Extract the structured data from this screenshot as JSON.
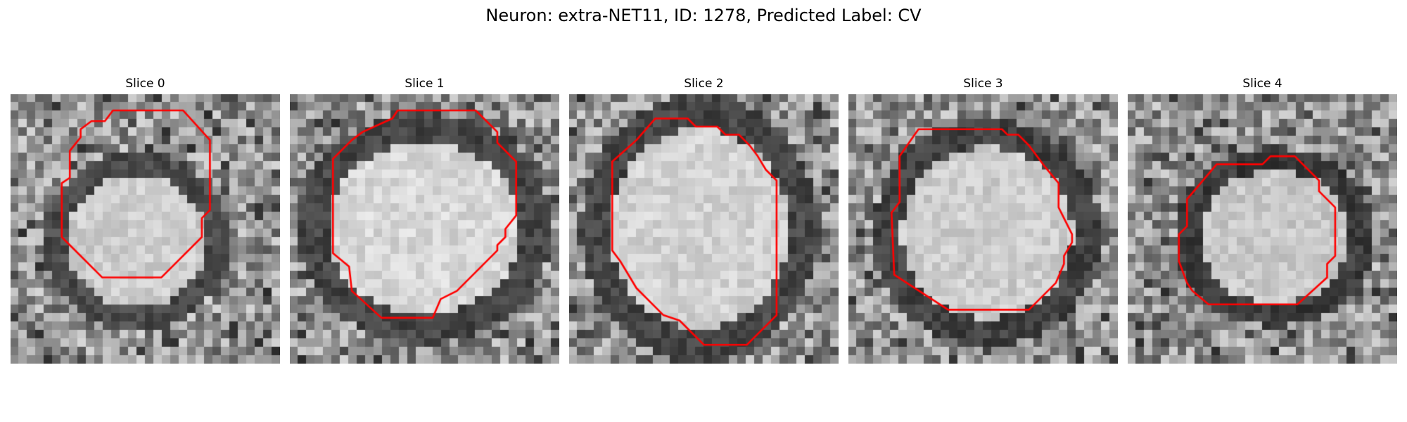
{
  "figure": {
    "title": "Neuron: extra-NET11, ID: 1278, Predicted Label: CV",
    "contour_color": "#ff0000"
  },
  "panels": [
    {
      "title": "Slice 0"
    },
    {
      "title": "Slice 1"
    },
    {
      "title": "Slice 2"
    },
    {
      "title": "Slice 3"
    },
    {
      "title": "Slice 4"
    }
  ]
}
